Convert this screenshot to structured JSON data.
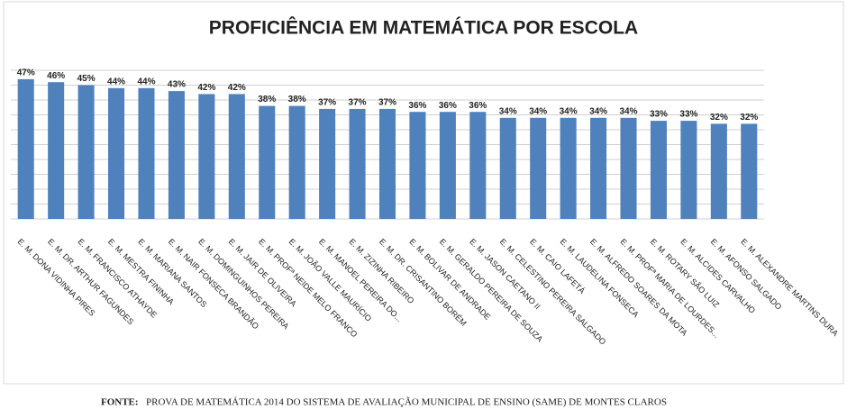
{
  "chart_data": {
    "type": "bar",
    "title": "PROFICIÊNCIA EM MATEMÁTICA POR ESCOLA",
    "categories": [
      "E. M. DONA VIDINHA PIRES",
      "E. M. DR. ARTHUR FAGUNDES",
      "E. M. FRANCISCO ATHAYDE",
      "E. M. MESTRA FININHA",
      "E. M. MARIANA SANTOS",
      "E. M. NAIR FONSECA BRANDÃO",
      "E. M. DOMINGUINHOS PEREIRA",
      "E. M. JAIR DE OLIVEIRA",
      "E. M. PROFª NEIDE MELO FRANCO",
      "E. M. JOÃO VALLE MAURÍCIO",
      "E. M. MANOEL PEREIRA DO...",
      "E. M. ZIZINHA RIBEIRO",
      "E. M. DR. CRISANTINO BORÉM",
      "E. M. BOLIVAR DE ANDRADE",
      "E. M. GERALDO PEREIRA DE SOUZA",
      "E. M. JASON CAETANO II",
      "E. M. CELESTINO PEREIRA SALGADO",
      "E. M. CAIO LAFETÁ",
      "E. M. LAUDELINA FONSECA",
      "E. M. ALFREDO SOARES DA MOTA",
      "E. M. PROFª MARIA DE LOURDES...",
      "E. M. ROTARY SÃO LUIZ",
      "E. M. ALCIDES CARVALHO",
      "E. M. AFONSO SALGADO",
      "E. M. ALEXANDRE MARTINS DURA"
    ],
    "values": [
      47,
      46,
      45,
      44,
      44,
      43,
      42,
      42,
      38,
      38,
      37,
      37,
      37,
      36,
      36,
      36,
      34,
      34,
      34,
      34,
      34,
      33,
      33,
      32,
      32
    ],
    "value_labels": [
      "47%",
      "46%",
      "45%",
      "44%",
      "44%",
      "43%",
      "42%",
      "42%",
      "38%",
      "38%",
      "37%",
      "37%",
      "37%",
      "36%",
      "36%",
      "36%",
      "34%",
      "34%",
      "34%",
      "34%",
      "34%",
      "33%",
      "33%",
      "32%",
      "32%"
    ],
    "color": "#4f81bd",
    "ylim": [
      0,
      50
    ],
    "yticks": [
      0,
      5,
      10,
      15,
      20,
      25,
      30,
      35,
      40,
      45,
      50
    ],
    "grid": true,
    "source_label": "FONTE:",
    "source": "PROVA DE MATEMÁTICA 2014  DO SISTEMA DE AVALIAÇÃO MUNICIPAL DE ENSINO (SAME)  DE MONTES CLAROS"
  }
}
